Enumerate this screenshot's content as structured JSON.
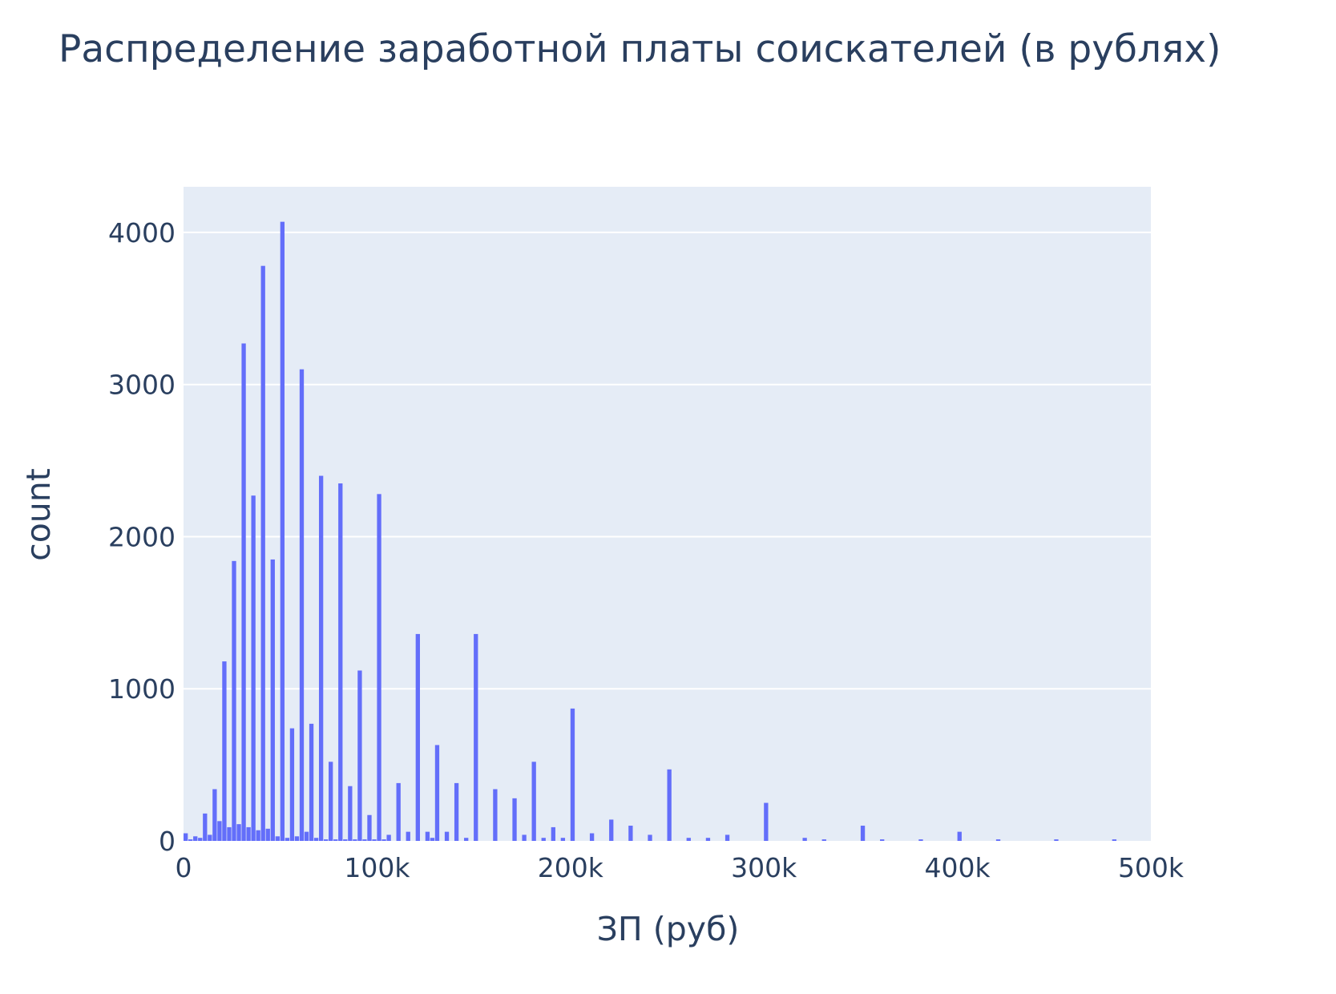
{
  "chart_data": {
    "type": "bar",
    "title": "Распределение заработной платы соискателей (в рублях)",
    "xlabel": "ЗП (руб)",
    "ylabel": "count",
    "xlim": [
      0,
      500000
    ],
    "ylim": [
      0,
      4300
    ],
    "bin_width": 2500,
    "x_ticks": [
      {
        "value": 0,
        "label": "0"
      },
      {
        "value": 100000,
        "label": "100k"
      },
      {
        "value": 200000,
        "label": "200k"
      },
      {
        "value": 300000,
        "label": "300k"
      },
      {
        "value": 400000,
        "label": "400k"
      },
      {
        "value": 500000,
        "label": "500k"
      }
    ],
    "y_ticks": [
      {
        "value": 0,
        "label": "0"
      },
      {
        "value": 1000,
        "label": "1000"
      },
      {
        "value": 2000,
        "label": "2000"
      },
      {
        "value": 3000,
        "label": "3000"
      },
      {
        "value": 4000,
        "label": "4000"
      }
    ],
    "grid": true,
    "colors": {
      "bar": "#636efa",
      "plot_bg": "#e5ecf6",
      "grid": "#ffffff",
      "text": "#2a3f5f"
    },
    "bins": [
      {
        "x": 0,
        "y": 50
      },
      {
        "x": 2500,
        "y": 10
      },
      {
        "x": 5000,
        "y": 30
      },
      {
        "x": 7500,
        "y": 20
      },
      {
        "x": 10000,
        "y": 180
      },
      {
        "x": 12500,
        "y": 40
      },
      {
        "x": 15000,
        "y": 340
      },
      {
        "x": 17500,
        "y": 130
      },
      {
        "x": 20000,
        "y": 1180
      },
      {
        "x": 22500,
        "y": 90
      },
      {
        "x": 25000,
        "y": 1840
      },
      {
        "x": 27500,
        "y": 110
      },
      {
        "x": 30000,
        "y": 3270
      },
      {
        "x": 32500,
        "y": 90
      },
      {
        "x": 35000,
        "y": 2270
      },
      {
        "x": 37500,
        "y": 70
      },
      {
        "x": 40000,
        "y": 3780
      },
      {
        "x": 42500,
        "y": 80
      },
      {
        "x": 45000,
        "y": 1850
      },
      {
        "x": 47500,
        "y": 30
      },
      {
        "x": 50000,
        "y": 4070
      },
      {
        "x": 52500,
        "y": 20
      },
      {
        "x": 55000,
        "y": 740
      },
      {
        "x": 57500,
        "y": 30
      },
      {
        "x": 60000,
        "y": 3100
      },
      {
        "x": 62500,
        "y": 60
      },
      {
        "x": 65000,
        "y": 770
      },
      {
        "x": 67500,
        "y": 20
      },
      {
        "x": 70000,
        "y": 2400
      },
      {
        "x": 72500,
        "y": 10
      },
      {
        "x": 75000,
        "y": 520
      },
      {
        "x": 77500,
        "y": 10
      },
      {
        "x": 80000,
        "y": 2350
      },
      {
        "x": 82500,
        "y": 10
      },
      {
        "x": 85000,
        "y": 360
      },
      {
        "x": 87500,
        "y": 10
      },
      {
        "x": 90000,
        "y": 1120
      },
      {
        "x": 92500,
        "y": 10
      },
      {
        "x": 95000,
        "y": 170
      },
      {
        "x": 97500,
        "y": 10
      },
      {
        "x": 100000,
        "y": 2280
      },
      {
        "x": 102500,
        "y": 10
      },
      {
        "x": 105000,
        "y": 40
      },
      {
        "x": 110000,
        "y": 380
      },
      {
        "x": 115000,
        "y": 60
      },
      {
        "x": 120000,
        "y": 1360
      },
      {
        "x": 125000,
        "y": 60
      },
      {
        "x": 127500,
        "y": 20
      },
      {
        "x": 130000,
        "y": 630
      },
      {
        "x": 135000,
        "y": 60
      },
      {
        "x": 140000,
        "y": 380
      },
      {
        "x": 145000,
        "y": 20
      },
      {
        "x": 150000,
        "y": 1360
      },
      {
        "x": 160000,
        "y": 340
      },
      {
        "x": 170000,
        "y": 280
      },
      {
        "x": 175000,
        "y": 40
      },
      {
        "x": 180000,
        "y": 520
      },
      {
        "x": 185000,
        "y": 20
      },
      {
        "x": 190000,
        "y": 90
      },
      {
        "x": 195000,
        "y": 20
      },
      {
        "x": 200000,
        "y": 870
      },
      {
        "x": 210000,
        "y": 50
      },
      {
        "x": 220000,
        "y": 140
      },
      {
        "x": 230000,
        "y": 100
      },
      {
        "x": 240000,
        "y": 40
      },
      {
        "x": 250000,
        "y": 470
      },
      {
        "x": 260000,
        "y": 20
      },
      {
        "x": 270000,
        "y": 20
      },
      {
        "x": 280000,
        "y": 40
      },
      {
        "x": 300000,
        "y": 250
      },
      {
        "x": 320000,
        "y": 20
      },
      {
        "x": 330000,
        "y": 10
      },
      {
        "x": 350000,
        "y": 100
      },
      {
        "x": 360000,
        "y": 10
      },
      {
        "x": 380000,
        "y": 10
      },
      {
        "x": 400000,
        "y": 60
      },
      {
        "x": 420000,
        "y": 10
      },
      {
        "x": 450000,
        "y": 10
      },
      {
        "x": 480000,
        "y": 10
      },
      {
        "x": 500000,
        "y": 10
      }
    ]
  }
}
